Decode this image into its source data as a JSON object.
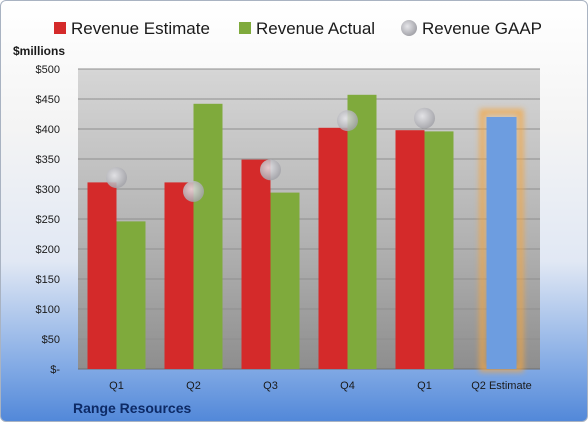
{
  "chart_data": {
    "type": "bar",
    "title": "",
    "company": "Range Resources",
    "ylabel": "$millions",
    "ylim": [
      0,
      500
    ],
    "yticks": [
      {
        "value": 0,
        "label": "$-"
      },
      {
        "value": 50,
        "label": "$50"
      },
      {
        "value": 100,
        "label": "$100"
      },
      {
        "value": 150,
        "label": "$150"
      },
      {
        "value": 200,
        "label": "$200"
      },
      {
        "value": 250,
        "label": "$250"
      },
      {
        "value": 300,
        "label": "$300"
      },
      {
        "value": 350,
        "label": "$350"
      },
      {
        "value": 400,
        "label": "$400"
      },
      {
        "value": 450,
        "label": "$450"
      },
      {
        "value": 500,
        "label": "$500"
      }
    ],
    "categories": [
      "Q1",
      "Q2",
      "Q3",
      "Q4",
      "Q1",
      "Q2 Estimate"
    ],
    "series": [
      {
        "name": "Revenue Estimate",
        "color": "#d42a2a",
        "values": [
          311,
          311,
          349,
          402,
          398,
          null
        ]
      },
      {
        "name": "Revenue Actual",
        "color": "#7faa3c",
        "values": [
          246,
          442,
          294,
          457,
          396,
          null
        ]
      },
      {
        "name": "Revenue GAAP",
        "color": "#b4b4b8",
        "values": [
          319,
          296,
          332,
          414,
          418,
          null
        ]
      }
    ],
    "estimate": {
      "category": "Q2 Estimate",
      "value": 420,
      "color": "#6d9de0",
      "glow": "#f5a640"
    },
    "legend": "top",
    "grid": true
  }
}
